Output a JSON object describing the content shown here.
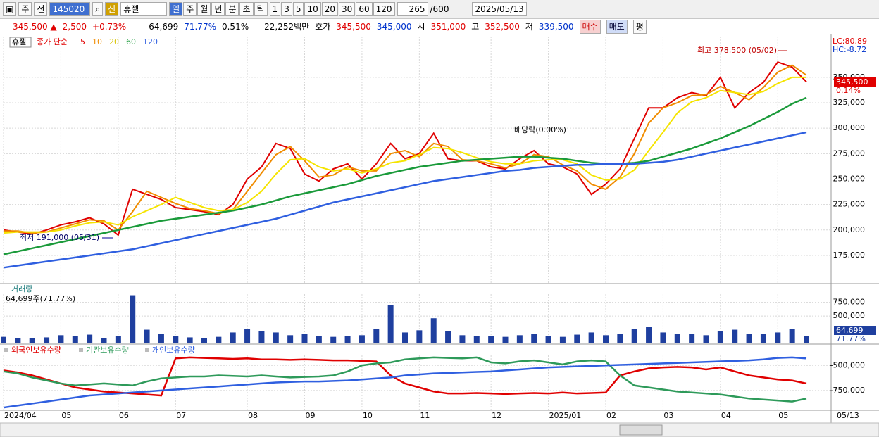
{
  "toolbar": {
    "period_type": "주",
    "prev": "전",
    "code": "145020",
    "new_badge": "신",
    "name": "휴젤",
    "periods": [
      "일",
      "주",
      "월",
      "년",
      "분",
      "초",
      "틱"
    ],
    "intervals": [
      "1",
      "3",
      "5",
      "10",
      "20",
      "30",
      "60",
      "120"
    ],
    "count": "265",
    "count_max": "/600",
    "date": "2025/05/13"
  },
  "info": {
    "price": "345,500 ▲",
    "change": "2,500",
    "change_pct": "+0.73%",
    "volume": "64,699",
    "volume_ratio": "71.77%",
    "turnover": "0.51%",
    "amount": "22,252백만",
    "quote_label": "호가",
    "ask": "345,500",
    "bid": "345,000",
    "open_label": "시",
    "open": "351,000",
    "high_label": "고",
    "high": "352,500",
    "low_label": "저",
    "low": "339,500",
    "buy": "매수",
    "sell": "매도",
    "avg": "평"
  },
  "chart_data": [
    {
      "type": "line",
      "stock": "휴젤",
      "indicator": "종가 단순",
      "high_note": "최고 378,500 (05/02)",
      "low_note": "최저 191,000 (05/31)",
      "dividend_note": "배당락(0.00%)",
      "lc": "LC:80.89",
      "hc": "HC:-8.72",
      "price_box": "345,500",
      "price_pct": "0.14%",
      "ylim": [
        148000,
        390000
      ],
      "yticks": [
        {
          "value": 175000,
          "label": "175,000"
        },
        {
          "value": 200000,
          "label": "200,000"
        },
        {
          "value": 225000,
          "label": "225,000"
        },
        {
          "value": 250000,
          "label": "250,000"
        },
        {
          "value": 275000,
          "label": "275,000"
        },
        {
          "value": 300000,
          "label": "300,000"
        },
        {
          "value": 325000,
          "label": "325,000"
        },
        {
          "value": 350000,
          "label": "350,000"
        }
      ],
      "grid": true,
      "series": [
        {
          "name": "5",
          "color": "#e00000",
          "values": [
            200000,
            198000,
            196000,
            200000,
            205000,
            208000,
            212000,
            206000,
            195000,
            240000,
            235000,
            230000,
            222000,
            220000,
            218000,
            215000,
            225000,
            250000,
            262000,
            285000,
            280000,
            255000,
            248000,
            260000,
            265000,
            250000,
            265000,
            285000,
            270000,
            275000,
            295000,
            270000,
            268000,
            268000,
            262000,
            260000,
            270000,
            278000,
            265000,
            262000,
            255000,
            235000,
            245000,
            260000,
            290000,
            320000,
            320000,
            330000,
            335000,
            332000,
            350000,
            320000,
            335000,
            345000,
            365000,
            360000,
            345500
          ]
        },
        {
          "name": "10",
          "color": "#f08c00",
          "values": [
            199000,
            199000,
            197000,
            198000,
            202000,
            206000,
            210000,
            209000,
            200000,
            218000,
            238000,
            232000,
            226000,
            221000,
            219000,
            216000,
            220000,
            238000,
            256000,
            274000,
            282000,
            268000,
            252000,
            254000,
            262000,
            258000,
            258000,
            275000,
            278000,
            272000,
            285000,
            282000,
            269000,
            268000,
            265000,
            261000,
            265000,
            274000,
            272000,
            264000,
            258000,
            245000,
            240000,
            252000,
            275000,
            305000,
            320000,
            325000,
            332000,
            333000,
            341000,
            335000,
            328000,
            340000,
            355000,
            362000,
            352000
          ]
        },
        {
          "name": "20",
          "color": "#f5e400",
          "values": [
            197000,
            198000,
            198000,
            198000,
            200000,
            204000,
            207000,
            208000,
            205000,
            213000,
            219000,
            225000,
            232000,
            227000,
            222000,
            219000,
            220000,
            227000,
            238000,
            255000,
            269000,
            270000,
            262000,
            258000,
            260000,
            256000,
            260000,
            266000,
            268000,
            274000,
            281000,
            280000,
            276000,
            271000,
            267000,
            265000,
            265000,
            268000,
            269000,
            269000,
            265000,
            254000,
            249000,
            250000,
            259000,
            278000,
            296000,
            315000,
            326000,
            330000,
            337000,
            335000,
            333000,
            336000,
            344000,
            350000,
            350000
          ]
        },
        {
          "name": "60",
          "color": "#1a9a3a",
          "values": [
            176000,
            179000,
            182000,
            185000,
            188000,
            191000,
            194000,
            197000,
            200000,
            203000,
            206000,
            209000,
            211000,
            213000,
            215000,
            217000,
            219000,
            222000,
            225000,
            229000,
            233000,
            236000,
            239000,
            242000,
            245000,
            249000,
            253000,
            256000,
            259000,
            262000,
            264000,
            266000,
            268000,
            269000,
            270000,
            271000,
            272000,
            272000,
            271000,
            270000,
            268000,
            266000,
            265000,
            265000,
            266000,
            268000,
            272000,
            276000,
            280000,
            285000,
            290000,
            296000,
            302000,
            309000,
            316000,
            324000,
            330000
          ]
        },
        {
          "name": "120",
          "color": "#2f5fe0",
          "values": [
            163000,
            165000,
            167000,
            169000,
            171000,
            173000,
            175000,
            177000,
            179000,
            181000,
            184000,
            187000,
            190000,
            193000,
            196000,
            199000,
            202000,
            205000,
            208000,
            211000,
            215000,
            219000,
            223000,
            227000,
            230000,
            233000,
            236000,
            239000,
            242000,
            245000,
            248000,
            250000,
            252000,
            254000,
            256000,
            258000,
            259000,
            261000,
            262000,
            263000,
            264000,
            264000,
            265000,
            265000,
            265000,
            266000,
            267000,
            269000,
            272000,
            275000,
            278000,
            281000,
            284000,
            287000,
            290000,
            293000,
            296000
          ]
        }
      ]
    },
    {
      "type": "bar",
      "title": "거래량",
      "subtitle": "64,699주(71.77%)",
      "volume_box": "64,699",
      "volume_pct": "71.77%",
      "color": "#1f3f9f",
      "ylim": [
        0,
        900000
      ],
      "yticks": [
        {
          "value": 500000,
          "label": "500,000"
        },
        {
          "value": 750000,
          "label": "750,000"
        }
      ],
      "grid": true,
      "values": [
        120000,
        100000,
        90000,
        110000,
        150000,
        130000,
        160000,
        100000,
        140000,
        880000,
        250000,
        180000,
        130000,
        110000,
        100000,
        120000,
        200000,
        260000,
        230000,
        200000,
        150000,
        180000,
        140000,
        120000,
        130000,
        150000,
        260000,
        700000,
        200000,
        240000,
        460000,
        220000,
        150000,
        130000,
        140000,
        120000,
        150000,
        180000,
        130000,
        120000,
        160000,
        200000,
        150000,
        170000,
        260000,
        300000,
        200000,
        180000,
        170000,
        150000,
        220000,
        250000,
        180000,
        170000,
        200000,
        260000,
        130000
      ]
    },
    {
      "type": "line",
      "ylim": [
        -940000,
        -400000
      ],
      "yticks": [
        {
          "value": -750000,
          "label": "-750,000"
        },
        {
          "value": -500000,
          "label": "-500,000"
        }
      ],
      "grid": true,
      "categories": [
        "2024/04",
        null,
        null,
        null,
        "05",
        null,
        null,
        null,
        "06",
        null,
        null,
        null,
        "07",
        null,
        null,
        null,
        null,
        "08",
        null,
        null,
        null,
        "09",
        null,
        null,
        null,
        "10",
        null,
        null,
        null,
        "11",
        null,
        null,
        null,
        null,
        "12",
        null,
        null,
        null,
        "2025/01",
        null,
        null,
        null,
        "02",
        null,
        null,
        null,
        "03",
        null,
        null,
        null,
        "04",
        null,
        null,
        null,
        "05",
        null,
        null
      ],
      "x_end_label": "05/13",
      "series": [
        {
          "name": "외국인보유수량",
          "color": "#e00000",
          "values": [
            -550000,
            -570000,
            -600000,
            -640000,
            -680000,
            -720000,
            -740000,
            -760000,
            -770000,
            -780000,
            -790000,
            -800000,
            -430000,
            -420000,
            -425000,
            -430000,
            -435000,
            -430000,
            -440000,
            -440000,
            -445000,
            -440000,
            -445000,
            -450000,
            -450000,
            -455000,
            -460000,
            -600000,
            -680000,
            -720000,
            -760000,
            -780000,
            -780000,
            -775000,
            -780000,
            -785000,
            -780000,
            -775000,
            -780000,
            -770000,
            -780000,
            -775000,
            -770000,
            -600000,
            -560000,
            -530000,
            -520000,
            -515000,
            -520000,
            -540000,
            -520000,
            -560000,
            -600000,
            -620000,
            -640000,
            -650000,
            -680000
          ]
        },
        {
          "name": "기관보유수량",
          "color": "#2e9a5a",
          "values": [
            -560000,
            -580000,
            -620000,
            -650000,
            -680000,
            -700000,
            -690000,
            -680000,
            -690000,
            -700000,
            -660000,
            -630000,
            -620000,
            -610000,
            -610000,
            -600000,
            -605000,
            -610000,
            -600000,
            -610000,
            -620000,
            -615000,
            -610000,
            -600000,
            -560000,
            -500000,
            -480000,
            -470000,
            -440000,
            -430000,
            -420000,
            -425000,
            -430000,
            -420000,
            -470000,
            -480000,
            -460000,
            -450000,
            -470000,
            -490000,
            -460000,
            -450000,
            -460000,
            -600000,
            -700000,
            -720000,
            -740000,
            -760000,
            -770000,
            -780000,
            -790000,
            -810000,
            -830000,
            -840000,
            -850000,
            -860000,
            -830000
          ]
        },
        {
          "name": "개인보유수량",
          "color": "#2f5fe0",
          "values": [
            -920000,
            -900000,
            -880000,
            -860000,
            -840000,
            -820000,
            -800000,
            -790000,
            -780000,
            -770000,
            -760000,
            -750000,
            -740000,
            -730000,
            -720000,
            -710000,
            -700000,
            -690000,
            -680000,
            -670000,
            -665000,
            -660000,
            -660000,
            -655000,
            -650000,
            -640000,
            -630000,
            -620000,
            -600000,
            -590000,
            -580000,
            -575000,
            -570000,
            -565000,
            -560000,
            -550000,
            -540000,
            -530000,
            -520000,
            -515000,
            -510000,
            -505000,
            -500000,
            -495000,
            -490000,
            -485000,
            -480000,
            -475000,
            -470000,
            -465000,
            -460000,
            -455000,
            -450000,
            -440000,
            -425000,
            -420000,
            -430000
          ]
        }
      ]
    }
  ]
}
